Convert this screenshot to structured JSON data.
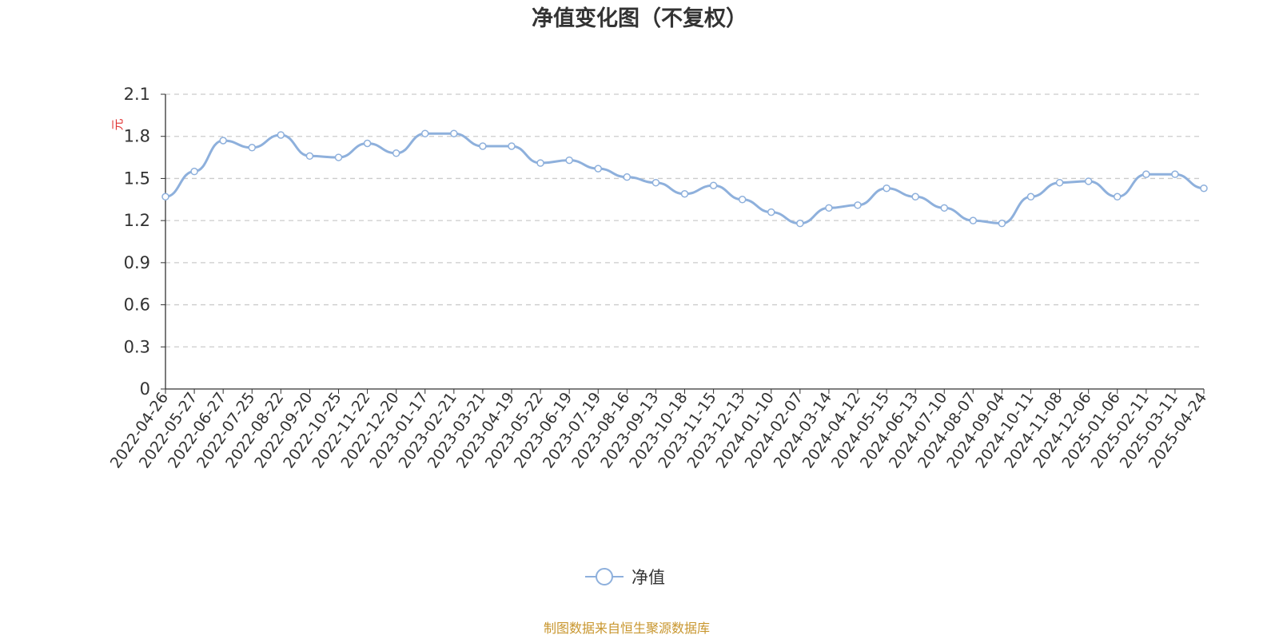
{
  "chart_data": {
    "type": "line",
    "title": "净值变化图（不复权）",
    "y_unit": "元",
    "ylim": [
      0,
      2.1
    ],
    "y_ticks": [
      "0",
      "0.3",
      "0.6",
      "0.9",
      "1.2",
      "1.5",
      "1.8",
      "2.1"
    ],
    "x_ticks": [
      "2022-04-26",
      "2022-05-27",
      "2022-06-27",
      "2022-07-25",
      "2022-08-22",
      "2022-09-20",
      "2022-10-25",
      "2022-11-22",
      "2022-12-20",
      "2023-01-17",
      "2023-02-21",
      "2023-03-21",
      "2023-04-19",
      "2023-05-22",
      "2023-06-19",
      "2023-07-19",
      "2023-08-16",
      "2023-09-13",
      "2023-10-18",
      "2023-11-15",
      "2023-12-13",
      "2024-01-10",
      "2024-02-07",
      "2024-03-14",
      "2024-04-12",
      "2024-05-15",
      "2024-06-13",
      "2024-07-10",
      "2024-08-07",
      "2024-09-04",
      "2024-10-11",
      "2024-11-08",
      "2024-12-06",
      "2025-01-06",
      "2025-02-11",
      "2025-03-11",
      "2025-04-24"
    ],
    "grid": "horizontal-dashed",
    "legend_position": "bottom-center",
    "series": [
      {
        "name": "净值",
        "color": "#8eb0dc",
        "x": [
          "2022-04-26",
          "2022-05-27",
          "2022-06-27",
          "2022-07-25",
          "2022-08-22",
          "2022-09-20",
          "2022-10-25",
          "2022-11-22",
          "2022-12-20",
          "2023-01-17",
          "2023-02-21",
          "2023-03-21",
          "2023-04-19",
          "2023-05-22",
          "2023-06-19",
          "2023-07-19",
          "2023-08-16",
          "2023-09-13",
          "2023-10-18",
          "2023-11-15",
          "2023-12-13",
          "2024-01-10",
          "2024-02-07",
          "2024-03-14",
          "2024-04-12",
          "2024-05-15",
          "2024-06-13",
          "2024-07-10",
          "2024-08-07",
          "2024-09-04",
          "2024-10-11",
          "2024-11-08",
          "2024-12-06",
          "2025-01-06",
          "2025-02-11",
          "2025-03-11",
          "2025-04-24"
        ],
        "values": [
          1.37,
          1.55,
          1.77,
          1.72,
          1.81,
          1.66,
          1.65,
          1.75,
          1.68,
          1.82,
          1.82,
          1.73,
          1.73,
          1.61,
          1.63,
          1.57,
          1.51,
          1.47,
          1.39,
          1.45,
          1.35,
          1.26,
          1.18,
          1.29,
          1.31,
          1.43,
          1.37,
          1.29,
          1.2,
          1.18,
          1.37,
          1.47,
          1.48,
          1.37,
          1.53,
          1.53,
          1.43
        ]
      }
    ]
  },
  "source": "制图数据来自恒生聚源数据库"
}
